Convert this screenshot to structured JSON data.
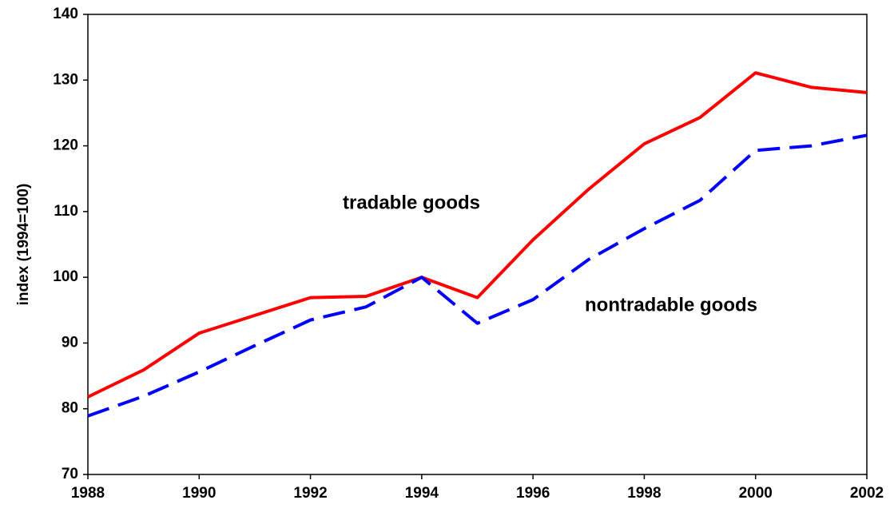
{
  "chart_data": {
    "type": "line",
    "y_label": "index (1994=100)",
    "x": [
      1988,
      1989,
      1990,
      1991,
      1992,
      1993,
      1994,
      1995,
      1996,
      1997,
      1998,
      1999,
      2000,
      2001,
      2002
    ],
    "xlim": [
      1988,
      2002
    ],
    "xticks": [
      1988,
      1990,
      1992,
      1994,
      1996,
      1998,
      2000,
      2002
    ],
    "ylim": [
      70,
      140
    ],
    "yticks": [
      70,
      80,
      90,
      100,
      110,
      120,
      130,
      140
    ],
    "grid": false,
    "series": [
      {
        "name": "tradable goods",
        "color": "#ff0000",
        "dash": false,
        "values": [
          81.8,
          85.9,
          91.5,
          94.2,
          96.9,
          97.1,
          100,
          96.9,
          105.7,
          113.4,
          120.3,
          124.3,
          131.1,
          128.9,
          128.1
        ]
      },
      {
        "name": "nontradable goods",
        "color": "#0000ff",
        "dash": true,
        "values": [
          78.9,
          81.9,
          85.6,
          89.6,
          93.5,
          95.5,
          100,
          93.0,
          96.6,
          102.7,
          107.4,
          111.7,
          119.3,
          120.0,
          121.6
        ]
      }
    ]
  }
}
